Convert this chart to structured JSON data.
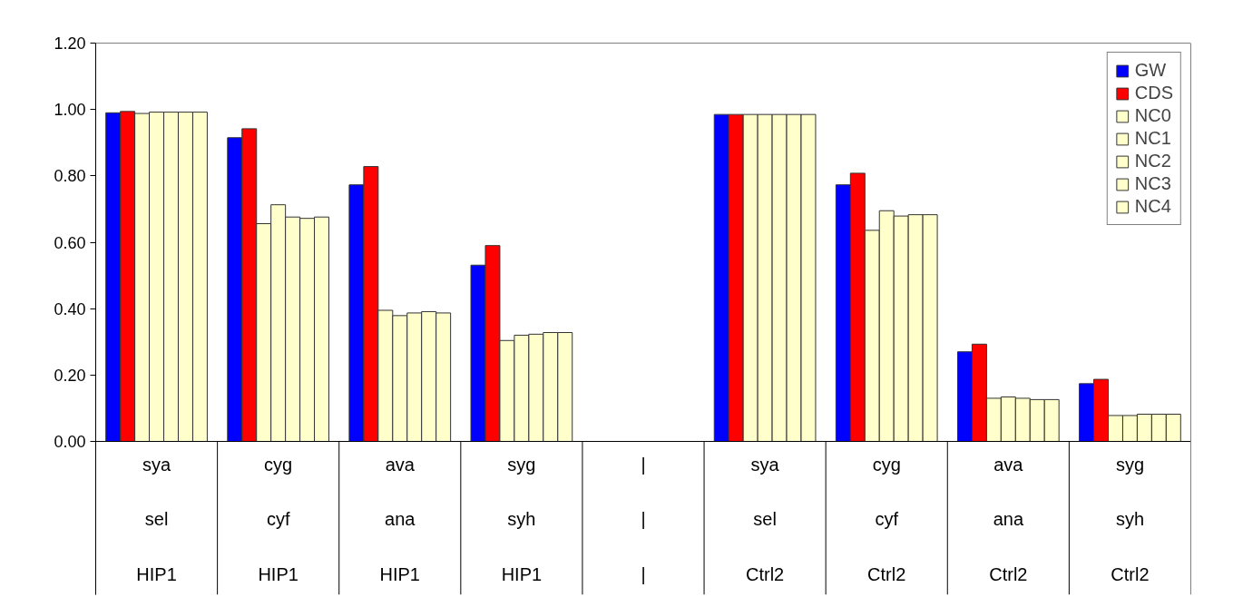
{
  "chart_data": {
    "type": "bar",
    "categories": [
      "sya\nsel\nHIP1",
      "cyg\ncyf\nHIP1",
      "ava\nana\nHIP1",
      "syg\nsyh\nHIP1",
      "|\n|\n|",
      "sya\nsel\nCtrl2",
      "cyg\ncyf\nCtrl2",
      "ava\nana\nCtrl2",
      "syg\nsyh\nCtrl2"
    ],
    "series": [
      {
        "name": "GW",
        "color": "#0000ff",
        "values": [
          0.99,
          0.915,
          0.773,
          0.531,
          null,
          0.985,
          0.773,
          0.27,
          0.174
        ]
      },
      {
        "name": "CDS",
        "color": "#ff0000",
        "values": [
          0.994,
          0.942,
          0.828,
          0.59,
          null,
          0.985,
          0.808,
          0.293,
          0.187
        ]
      },
      {
        "name": "NC0",
        "color": "#ffffcc",
        "values": [
          0.988,
          0.656,
          0.395,
          0.304,
          null,
          0.985,
          0.636,
          0.13,
          0.078
        ]
      },
      {
        "name": "NC1",
        "color": "#ffffcc",
        "values": [
          0.992,
          0.713,
          0.379,
          0.32,
          null,
          0.985,
          0.695,
          0.134,
          0.078
        ]
      },
      {
        "name": "NC2",
        "color": "#ffffcc",
        "values": [
          0.992,
          0.676,
          0.387,
          0.323,
          null,
          0.985,
          0.679,
          0.13,
          0.082
        ]
      },
      {
        "name": "NC3",
        "color": "#ffffcc",
        "values": [
          0.992,
          0.672,
          0.391,
          0.328,
          null,
          0.985,
          0.683,
          0.126,
          0.082
        ]
      },
      {
        "name": "NC4",
        "color": "#ffffcc",
        "values": [
          0.992,
          0.676,
          0.387,
          0.328,
          null,
          0.985,
          0.683,
          0.126,
          0.082
        ]
      }
    ],
    "ylim": [
      0,
      1.2
    ],
    "yticks": [
      {
        "value": 0,
        "label": "0.00"
      },
      {
        "value": 0.2,
        "label": "0.20"
      },
      {
        "value": 0.4,
        "label": "0.40"
      },
      {
        "value": 0.6,
        "label": "0.60"
      },
      {
        "value": 0.8,
        "label": "0.80"
      },
      {
        "value": 1.0,
        "label": "1.00"
      },
      {
        "value": 1.2,
        "label": "1.20"
      }
    ],
    "legend": "top right"
  }
}
